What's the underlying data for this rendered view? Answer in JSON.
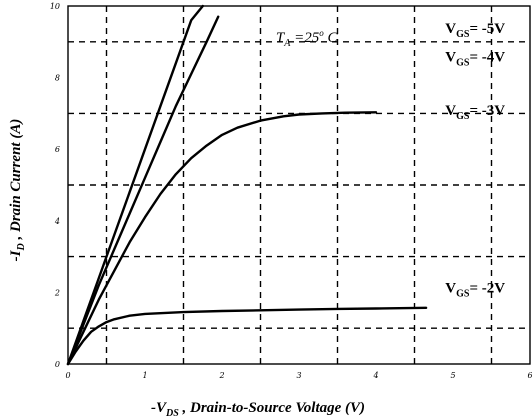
{
  "chart_data": {
    "type": "line",
    "xlabel_parts": [
      "-V",
      "DS",
      " , Drain-to-Source Voltage (V)"
    ],
    "ylabel_parts": [
      "-I",
      "D",
      " , Drain Current (A)"
    ],
    "xlim": [
      0,
      6
    ],
    "ylim": [
      0,
      10
    ],
    "x_ticks": [
      0,
      1,
      2,
      3,
      4,
      5,
      6
    ],
    "y_ticks": [
      0,
      2,
      4,
      6,
      8,
      10
    ],
    "x_tick_labels": [
      "0",
      "1",
      "2",
      "3",
      "4",
      "5",
      "6"
    ],
    "y_tick_labels": [
      "0",
      "2",
      "4",
      "6",
      "8",
      "10"
    ],
    "grid": true,
    "grid_x": [
      0.5,
      1.5,
      2.5,
      3.5,
      4.5,
      5.5
    ],
    "grid_y": [
      1,
      3,
      5,
      7,
      9
    ],
    "annotation": {
      "parts": [
        "T",
        "A",
        " =25",
        "o",
        " C"
      ],
      "x": 2.7,
      "y": 9.0
    },
    "series": [
      {
        "name_parts": [
          "V",
          "GS",
          "= -5V"
        ],
        "label_pos": [
          4.9,
          9.25
        ],
        "x": [
          0,
          0.2,
          0.4,
          0.6,
          0.8,
          1.0,
          1.2,
          1.4,
          1.6,
          1.75
        ],
        "y": [
          0,
          1.2,
          2.4,
          3.6,
          4.8,
          6.0,
          7.2,
          8.4,
          9.6,
          10.0
        ]
      },
      {
        "name_parts": [
          "V",
          "GS",
          "= -4V"
        ],
        "label_pos": [
          4.9,
          8.45
        ],
        "x": [
          0,
          0.2,
          0.4,
          0.6,
          0.8,
          1.0,
          1.2,
          1.4,
          1.6,
          1.8,
          1.95
        ],
        "y": [
          0,
          1.1,
          2.2,
          3.2,
          4.2,
          5.2,
          6.2,
          7.2,
          8.1,
          9.0,
          9.7
        ]
      },
      {
        "name_parts": [
          "V",
          "GS",
          "= -3V"
        ],
        "label_pos": [
          4.9,
          6.95
        ],
        "x": [
          0,
          0.2,
          0.4,
          0.6,
          0.8,
          1.0,
          1.2,
          1.4,
          1.6,
          1.8,
          2.0,
          2.2,
          2.5,
          2.8,
          3.0,
          3.3,
          3.6,
          4.0
        ],
        "y": [
          0,
          0.9,
          1.8,
          2.6,
          3.4,
          4.1,
          4.75,
          5.3,
          5.75,
          6.1,
          6.4,
          6.6,
          6.8,
          6.92,
          6.97,
          7.0,
          7.02,
          7.03
        ]
      },
      {
        "name_parts": [
          "V",
          "GS",
          "= -2V"
        ],
        "label_pos": [
          4.9,
          2.0
        ],
        "x": [
          0,
          0.1,
          0.2,
          0.3,
          0.4,
          0.5,
          0.6,
          0.8,
          1.0,
          1.5,
          2.0,
          2.5,
          3.0,
          3.5,
          4.0,
          4.65
        ],
        "y": [
          0,
          0.35,
          0.65,
          0.9,
          1.05,
          1.17,
          1.25,
          1.35,
          1.4,
          1.45,
          1.48,
          1.5,
          1.52,
          1.54,
          1.55,
          1.57
        ]
      }
    ]
  }
}
